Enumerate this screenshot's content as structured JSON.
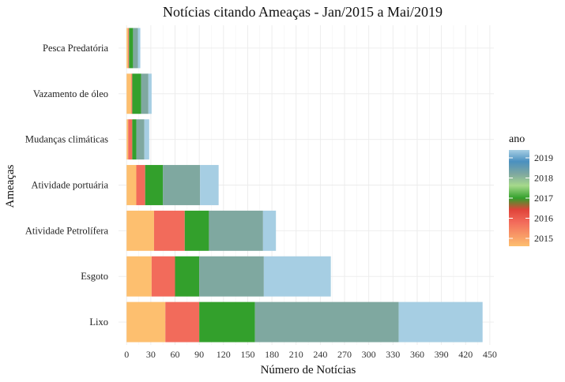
{
  "chart_data": {
    "type": "bar",
    "orientation": "horizontal",
    "stacked": true,
    "title": "Notícias citando Ameaças - Jan/2015 a Mai/2019",
    "xlabel": "Número de Notícias",
    "ylabel": "Ameaças",
    "xlim": [
      -10,
      455
    ],
    "x_ticks": [
      0,
      30,
      60,
      90,
      120,
      150,
      180,
      210,
      240,
      270,
      300,
      330,
      360,
      390,
      420,
      450
    ],
    "categories": [
      "Lixo",
      "Esgoto",
      "Atividade Petrolífera",
      "Atividade portuária",
      "Mudanças climáticas",
      "Vazamento de óleo",
      "Pesca Predatória"
    ],
    "series": [
      {
        "name": "2015",
        "color": "#FDBF6F",
        "values": [
          48,
          31,
          34,
          12,
          2,
          6,
          2
        ]
      },
      {
        "name": "2016",
        "color": "#F26B5B",
        "values": [
          42,
          29,
          38,
          11,
          5,
          1,
          1
        ]
      },
      {
        "name": "2017",
        "color": "#33A02C",
        "values": [
          69,
          30,
          30,
          22,
          5,
          11,
          5
        ]
      },
      {
        "name": "2018",
        "color": "#7FA8A0",
        "values": [
          178,
          80,
          67,
          46,
          10,
          9,
          6
        ]
      },
      {
        "name": "2019",
        "color": "#A6CEE3",
        "values": [
          104,
          83,
          16,
          23,
          6,
          4,
          3
        ]
      }
    ],
    "legend": {
      "title": "ano",
      "placement": "right",
      "labels": [
        "2019",
        "2018",
        "2017",
        "2016",
        "2015"
      ]
    },
    "grid": true
  }
}
